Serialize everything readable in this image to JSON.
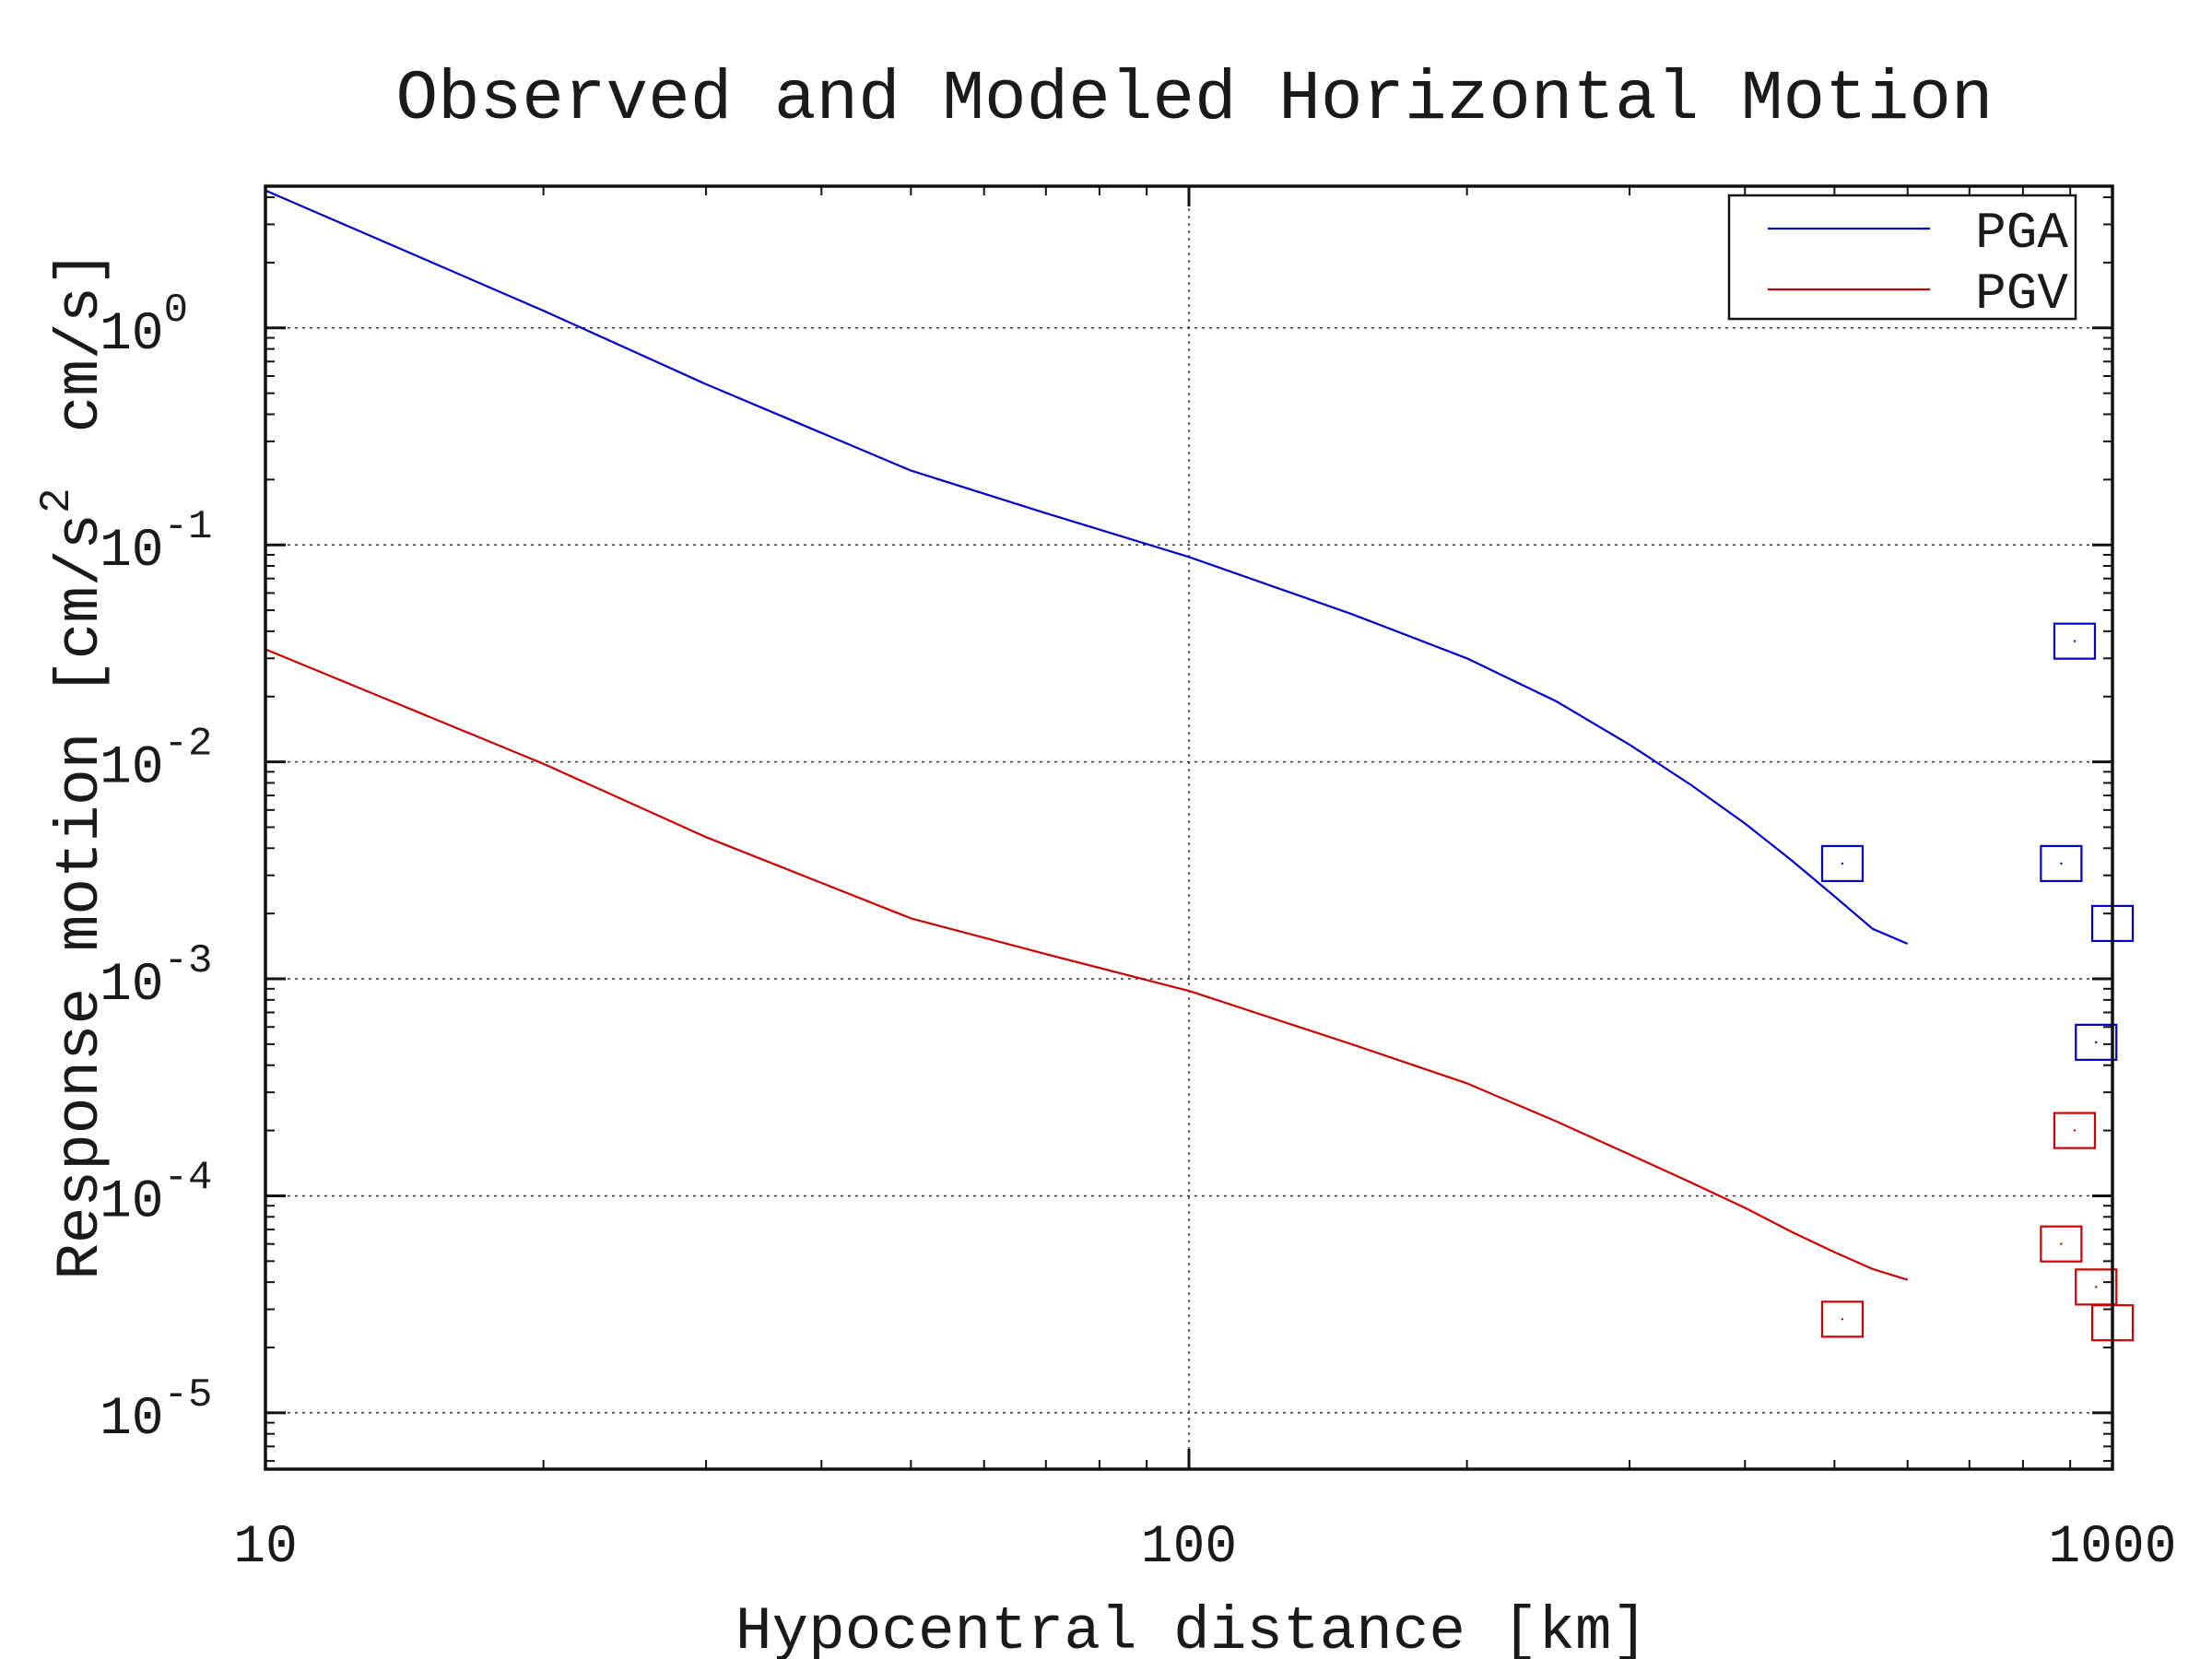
{
  "chart_data": {
    "type": "line",
    "title": "Observed and Modeled Horizontal Motion",
    "xlabel": "Hypocentral distance [km]",
    "ylabel_parts": [
      "Response motion [cm/s",
      "2",
      "cm/s]"
    ],
    "x_scale": "log",
    "y_scale": "log",
    "xlim": [
      10,
      1000
    ],
    "ylim": [
      5.5e-06,
      4.5
    ],
    "grid": true,
    "legend_position": "top-right",
    "x_ticks": [
      {
        "value": 10,
        "label": "10"
      },
      {
        "value": 100,
        "label": "100"
      },
      {
        "value": 1000,
        "label": "1000"
      }
    ],
    "y_ticks": [
      {
        "value": 1,
        "base": "10",
        "exp": "0"
      },
      {
        "value": 0.1,
        "base": "10",
        "exp": "-1"
      },
      {
        "value": 0.01,
        "base": "10",
        "exp": "-2"
      },
      {
        "value": 0.001,
        "base": "10",
        "exp": "-3"
      },
      {
        "value": 0.0001,
        "base": "10",
        "exp": "-4"
      },
      {
        "value": 1e-05,
        "base": "10",
        "exp": "-5"
      }
    ],
    "series": [
      {
        "name": "PGA",
        "color": "#0000cc",
        "model": {
          "x": [
            10,
            20,
            30,
            50,
            70,
            100,
            150,
            200,
            250,
            300,
            350,
            400,
            450,
            500,
            550,
            600
          ],
          "y": [
            4.3,
            1.2,
            0.55,
            0.22,
            0.14,
            0.088,
            0.048,
            0.03,
            0.019,
            0.012,
            0.0078,
            0.0052,
            0.0035,
            0.0024,
            0.0017,
            0.00145
          ]
        },
        "observed": {
          "x": [
            510,
            880,
            910,
            960,
            1000
          ],
          "y": [
            0.0034,
            0.0034,
            0.036,
            0.00051,
            0.0018
          ]
        }
      },
      {
        "name": "PGV",
        "color": "#cc0000",
        "model": {
          "x": [
            10,
            20,
            30,
            50,
            70,
            100,
            150,
            200,
            250,
            300,
            350,
            400,
            450,
            500,
            550,
            600
          ],
          "y": [
            0.033,
            0.0098,
            0.0045,
            0.0019,
            0.0013,
            0.00088,
            0.0005,
            0.00033,
            0.00022,
            0.000155,
            0.000115,
            8.8e-05,
            6.8e-05,
            5.5e-05,
            4.6e-05,
            4.1e-05
          ]
        },
        "observed": {
          "x": [
            510,
            880,
            910,
            960,
            1000
          ],
          "y": [
            2.7e-05,
            6e-05,
            0.0002,
            3.8e-05,
            2.6e-05
          ]
        }
      }
    ]
  }
}
